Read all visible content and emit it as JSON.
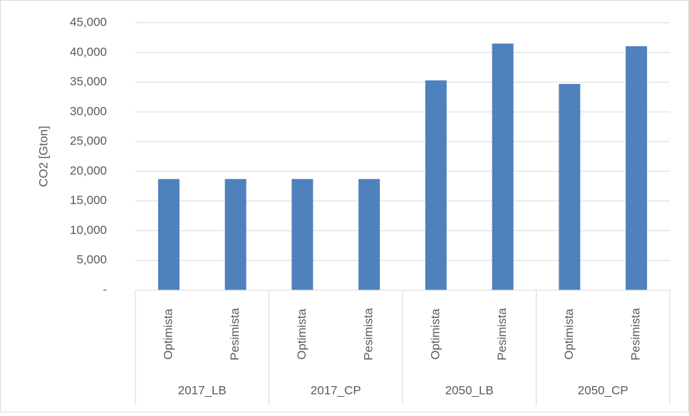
{
  "chart_data": {
    "type": "bar",
    "y_label": "CO2 [Gton]",
    "categories": [
      "Optimista",
      "Pesimista",
      "Optimista",
      "Pesimista",
      "Optimista",
      "Pesimista",
      "Optimista",
      "Pesimista"
    ],
    "category_groups": [
      "2017_LB",
      "2017_CP",
      "2050_LB",
      "2050_CP"
    ],
    "values": [
      18700,
      18700,
      18700,
      18700,
      35300,
      41500,
      34700,
      41050
    ],
    "color": "#4f81bd",
    "ylim": [
      0,
      45000
    ],
    "yticks": [
      {
        "value": 0,
        "label": "-"
      },
      {
        "value": 5000,
        "label": "5,000"
      },
      {
        "value": 10000,
        "label": "10,000"
      },
      {
        "value": 15000,
        "label": "15,000"
      },
      {
        "value": 20000,
        "label": "20,000"
      },
      {
        "value": 25000,
        "label": "25,000"
      },
      {
        "value": 30000,
        "label": "30,000"
      },
      {
        "value": 35000,
        "label": "35,000"
      },
      {
        "value": 40000,
        "label": "40,000"
      },
      {
        "value": 45000,
        "label": "45,000"
      }
    ],
    "grid": true
  }
}
